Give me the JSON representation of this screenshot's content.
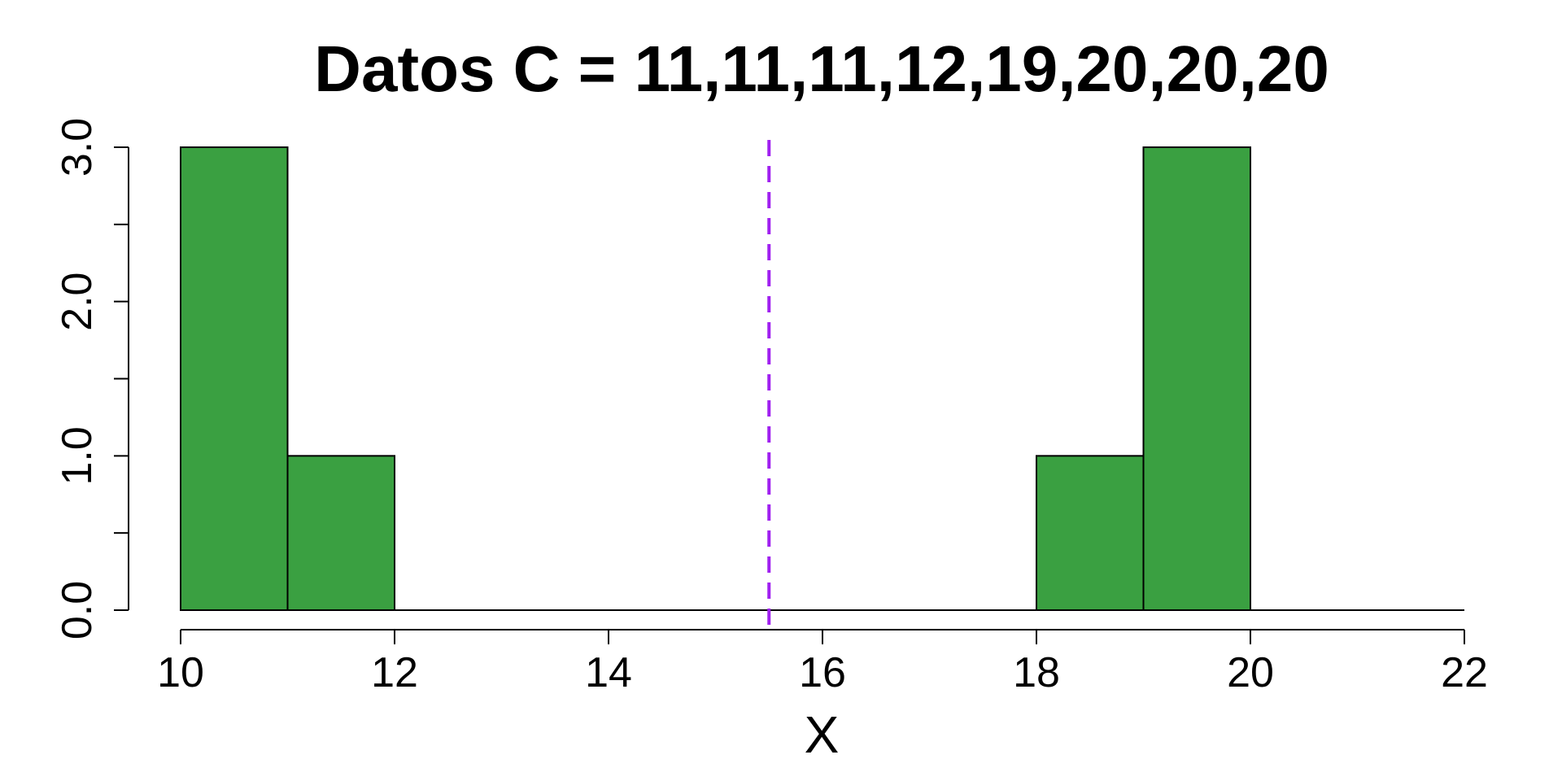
{
  "chart_data": {
    "type": "bar",
    "title": "Datos C = 11,11,11,12,19,20,20,20",
    "xlabel": "X",
    "ylabel": "",
    "bins": [
      {
        "start": 10,
        "end": 11,
        "count": 3
      },
      {
        "start": 11,
        "end": 12,
        "count": 1
      },
      {
        "start": 12,
        "end": 13,
        "count": 0
      },
      {
        "start": 13,
        "end": 14,
        "count": 0
      },
      {
        "start": 14,
        "end": 15,
        "count": 0
      },
      {
        "start": 15,
        "end": 16,
        "count": 0
      },
      {
        "start": 16,
        "end": 17,
        "count": 0
      },
      {
        "start": 17,
        "end": 18,
        "count": 0
      },
      {
        "start": 18,
        "end": 19,
        "count": 1
      },
      {
        "start": 19,
        "end": 20,
        "count": 3
      },
      {
        "start": 20,
        "end": 21,
        "count": 0
      },
      {
        "start": 21,
        "end": 22,
        "count": 0
      }
    ],
    "xlim": [
      10,
      22
    ],
    "ylim": [
      0,
      3
    ],
    "x_ticks": [
      10,
      12,
      14,
      16,
      18,
      20,
      22
    ],
    "x_tick_labels": [
      "10",
      "12",
      "14",
      "16",
      "18",
      "20",
      "22"
    ],
    "y_ticks": [
      0,
      0.5,
      1,
      1.5,
      2,
      2.5,
      3
    ],
    "y_tick_labels": [
      "0.0",
      "",
      "1.0",
      "",
      "2.0",
      "",
      "3.0"
    ],
    "reference_line": {
      "x": 15.5,
      "style": "dashed",
      "color": "#a020f0"
    },
    "bar_color": "#3aa041",
    "bar_edge_color": "#000000",
    "grid": false,
    "legend": "none"
  }
}
